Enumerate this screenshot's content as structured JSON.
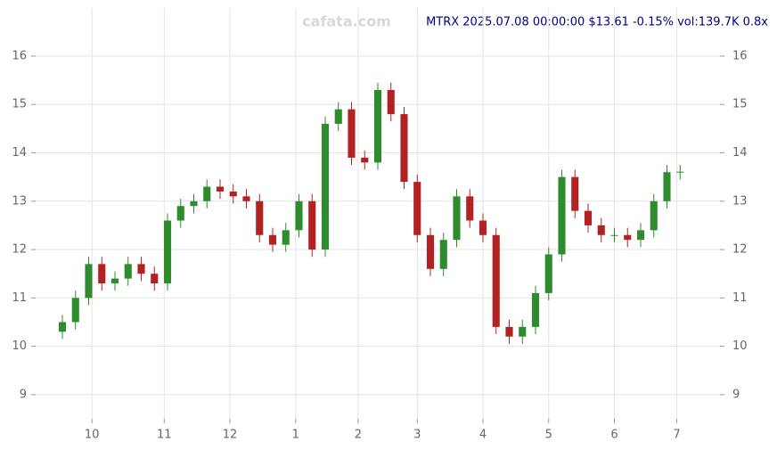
{
  "chart_data": {
    "type": "candlestick",
    "title": "MTRX 2025.07.08 00:00:00 $13.61 -0.15% vol:139.7K 0.8x",
    "watermark": "cafata.com",
    "x": [
      0,
      4,
      8,
      12,
      16,
      20,
      24,
      28,
      32,
      36,
      40,
      44,
      48,
      52,
      56,
      60,
      64,
      68,
      72,
      76,
      80,
      84,
      88,
      92,
      96,
      100,
      104,
      108,
      112,
      116,
      120,
      124,
      128,
      132,
      136,
      140,
      144,
      148,
      152,
      156,
      160,
      164,
      168,
      172,
      176,
      180,
      184,
      188
    ],
    "open": [
      10.3,
      10.5,
      11.0,
      11.7,
      11.3,
      11.4,
      11.7,
      11.5,
      11.3,
      12.6,
      12.9,
      13.0,
      13.3,
      13.2,
      13.1,
      13.0,
      12.3,
      12.1,
      12.4,
      13.0,
      12.0,
      14.6,
      14.9,
      13.9,
      13.8,
      15.3,
      14.8,
      13.4,
      12.3,
      11.6,
      12.2,
      13.1,
      12.6,
      12.3,
      10.4,
      10.2,
      10.4,
      11.1,
      11.9,
      13.5,
      12.8,
      12.5,
      12.3,
      12.3,
      12.2,
      12.4,
      13.0,
      13.6
    ],
    "close": [
      10.5,
      11.0,
      11.7,
      11.3,
      11.4,
      11.7,
      11.5,
      11.3,
      12.6,
      12.9,
      13.0,
      13.3,
      13.2,
      13.1,
      13.0,
      12.3,
      12.1,
      12.4,
      13.0,
      12.0,
      14.6,
      14.9,
      13.9,
      13.8,
      15.3,
      14.8,
      13.4,
      12.3,
      11.6,
      12.2,
      13.1,
      12.6,
      12.3,
      10.4,
      10.2,
      10.4,
      11.1,
      11.9,
      13.5,
      12.8,
      12.5,
      12.3,
      12.3,
      12.2,
      12.4,
      13.0,
      13.6,
      13.61
    ],
    "high": [
      10.65,
      11.15,
      11.85,
      11.85,
      11.55,
      11.85,
      11.85,
      11.65,
      12.75,
      13.05,
      13.15,
      13.45,
      13.45,
      13.35,
      13.25,
      13.15,
      12.45,
      12.55,
      13.15,
      13.15,
      14.75,
      15.05,
      15.05,
      14.05,
      15.45,
      15.45,
      14.95,
      13.55,
      12.45,
      12.35,
      13.25,
      13.25,
      12.75,
      12.45,
      10.55,
      10.55,
      11.25,
      12.05,
      13.65,
      13.65,
      12.95,
      12.65,
      12.45,
      12.45,
      12.55,
      13.15,
      13.75,
      13.75
    ],
    "low": [
      10.15,
      10.35,
      10.85,
      11.15,
      11.15,
      11.25,
      11.35,
      11.15,
      11.15,
      12.45,
      12.75,
      12.85,
      13.05,
      12.95,
      12.85,
      12.15,
      11.95,
      11.95,
      12.25,
      11.85,
      11.85,
      14.45,
      13.75,
      13.65,
      13.65,
      14.65,
      13.25,
      12.15,
      11.45,
      11.45,
      12.05,
      12.45,
      12.15,
      10.25,
      10.05,
      10.05,
      10.25,
      10.95,
      11.75,
      12.65,
      12.35,
      12.15,
      12.15,
      12.05,
      12.05,
      12.25,
      12.85,
      13.45
    ],
    "up_color": "#2e8b2e",
    "down_color": "#b22222",
    "xlim": [
      0,
      192
    ],
    "xticks": [
      {
        "value": 9,
        "label": "10"
      },
      {
        "value": 31,
        "label": "11"
      },
      {
        "value": 51,
        "label": "12"
      },
      {
        "value": 71,
        "label": "1"
      },
      {
        "value": 90,
        "label": "2"
      },
      {
        "value": 108,
        "label": "3"
      },
      {
        "value": 128,
        "label": "4"
      },
      {
        "value": 148,
        "label": "5"
      },
      {
        "value": 168,
        "label": "6"
      },
      {
        "value": 187,
        "label": "7"
      }
    ],
    "ylim": [
      8.5,
      17
    ],
    "yticks": [
      9,
      10,
      11,
      12,
      13,
      14,
      15,
      16
    ],
    "grid": true
  }
}
